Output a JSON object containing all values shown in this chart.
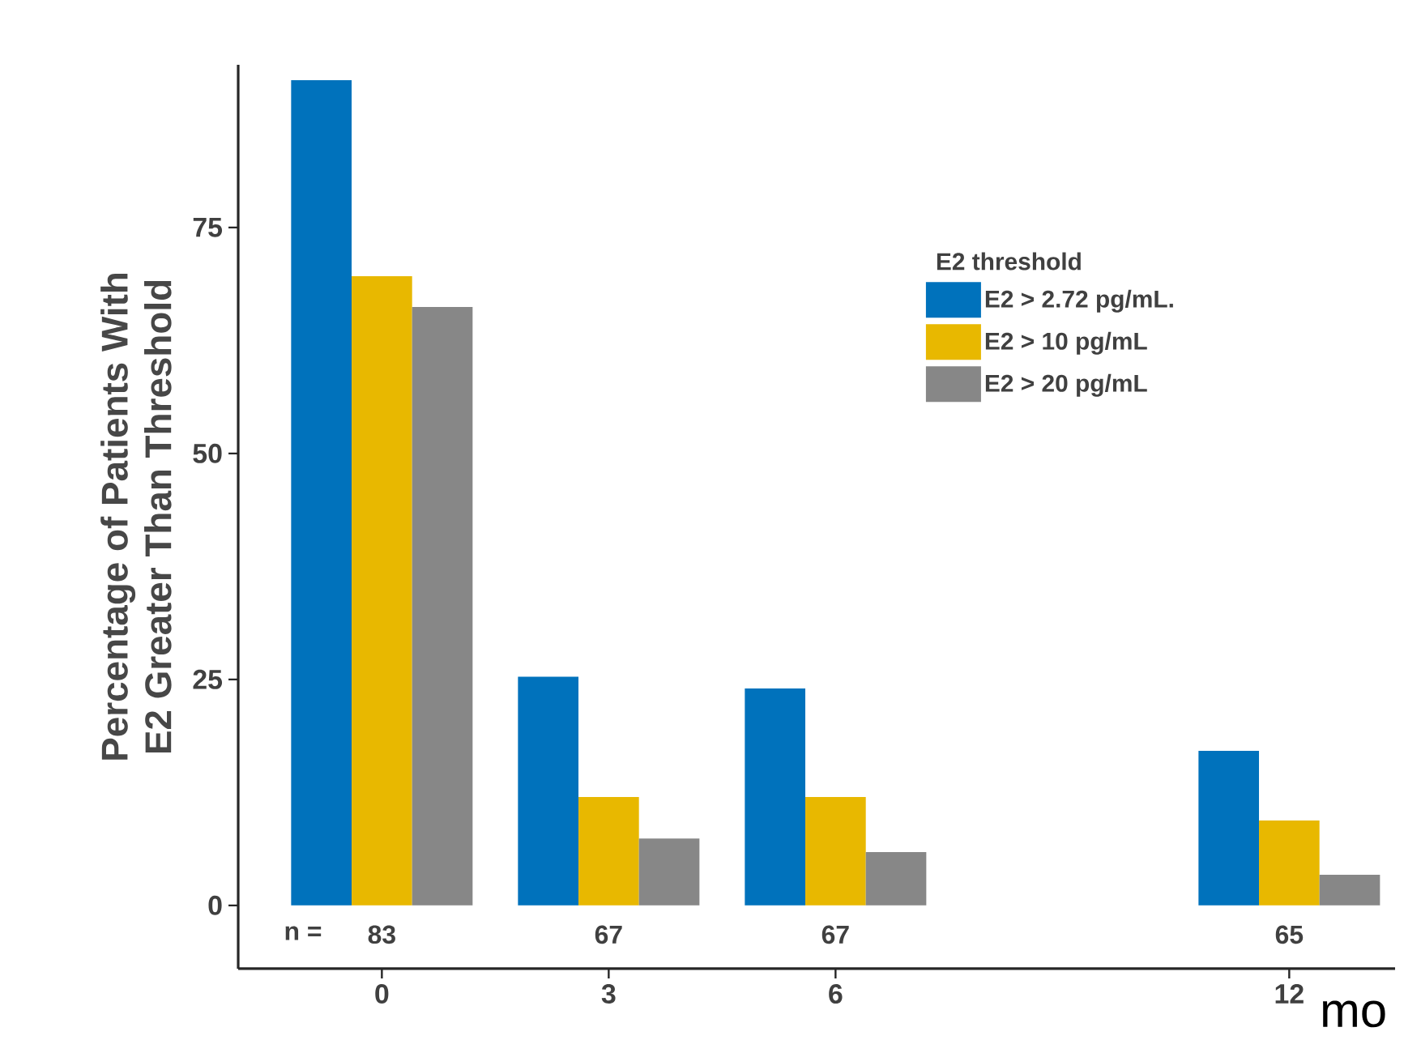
{
  "chart_data": {
    "type": "bar",
    "ylabel": "Percentage of Patients With\nE2 Greater Than Threshold",
    "xlabel": "mo",
    "legend_title": "E2 threshold",
    "legend": "right",
    "grid": false,
    "x": [
      0,
      3,
      6,
      12
    ],
    "xlim": [
      -1.9,
      13.4
    ],
    "xticks": [
      0,
      3,
      6,
      12
    ],
    "ylim": [
      -7,
      93
    ],
    "yticks": [
      0,
      25,
      50,
      75
    ],
    "series": [
      {
        "name": "E2 > 2.72 pg/mL.",
        "color": "#0072bc",
        "values": [
          91.3,
          25.3,
          24.0,
          17.1
        ]
      },
      {
        "name": "E2 > 10 pg/mL",
        "color": "#e8b800",
        "values": [
          69.6,
          12.0,
          12.0,
          9.4
        ]
      },
      {
        "name": "E2 > 20 pg/mL",
        "color": "#878787",
        "values": [
          66.2,
          7.4,
          5.9,
          3.4
        ]
      }
    ],
    "annotations": [
      "n =",
      "83",
      "67",
      "67",
      "65"
    ]
  }
}
